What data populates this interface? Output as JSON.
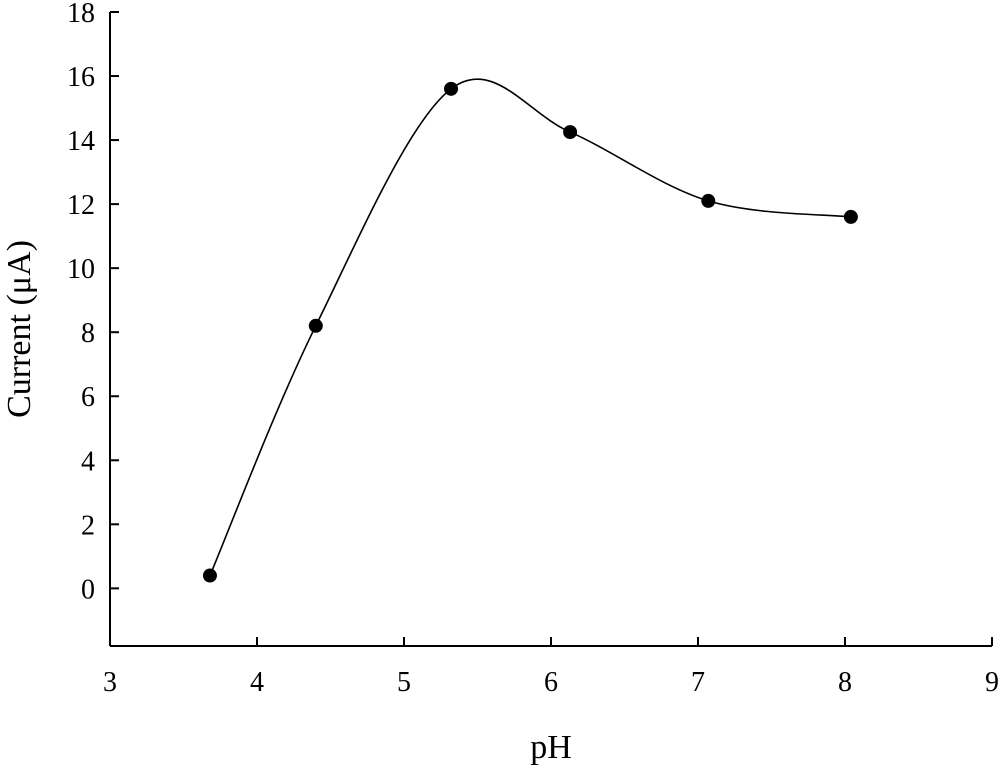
{
  "chart_data": {
    "type": "scatter",
    "title": "",
    "xlabel": "pH",
    "ylabel": "Current (μA)",
    "xlim": [
      3,
      9
    ],
    "ylim": [
      -1.8,
      18
    ],
    "xticks": [
      3,
      4,
      5,
      6,
      7,
      8,
      9
    ],
    "yticks": [
      0,
      2,
      4,
      6,
      8,
      10,
      12,
      14,
      16,
      18
    ],
    "grid": false,
    "legend": "none",
    "marker_color": "#000000",
    "line_color": "#000000",
    "series": [
      {
        "x": [
          3.68,
          4.4,
          5.32,
          6.13,
          7.07,
          8.04
        ],
        "y": [
          0.4,
          8.2,
          15.6,
          14.25,
          12.1,
          11.6
        ],
        "line": "smooth",
        "marker": "circle"
      }
    ]
  }
}
